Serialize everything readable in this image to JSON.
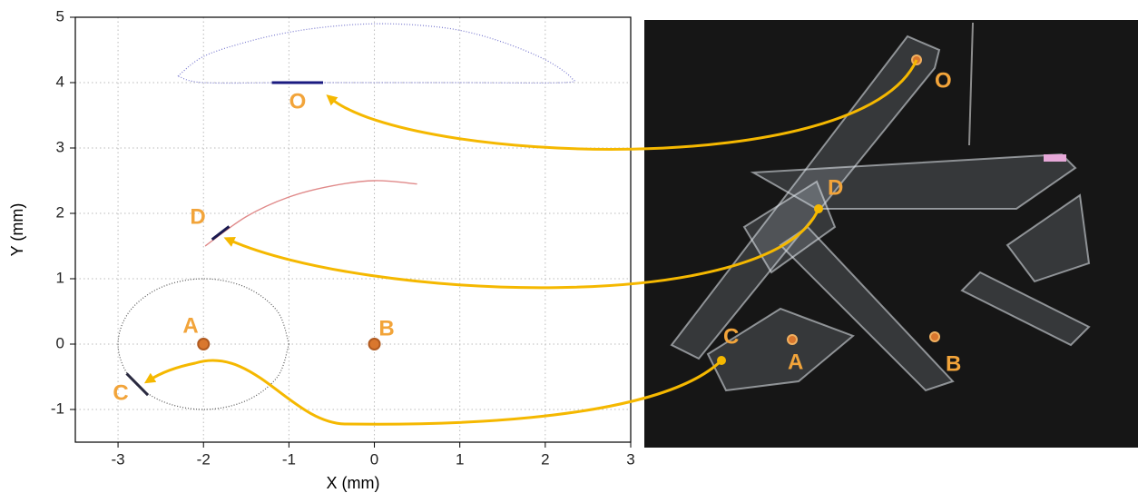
{
  "chart_data": {
    "type": "line",
    "xlabel": "X (mm)",
    "ylabel": "Y (mm)",
    "xlim": [
      -3.5,
      3
    ],
    "ylim": [
      -1.5,
      5
    ],
    "xticks": [
      -3,
      -2,
      -1,
      0,
      1,
      2,
      3
    ],
    "yticks": [
      -1,
      0,
      1,
      2,
      3,
      4,
      5
    ],
    "grid": true,
    "series": [
      {
        "color": "#7a7ad0",
        "line_style": "dotted",
        "x": [
          -2.3,
          -2,
          -1.5,
          -1,
          -0.5,
          0,
          0.5,
          1,
          1.5,
          2,
          2.3,
          2.2,
          1,
          0,
          -1,
          -2,
          -2.3
        ],
        "values": [
          4.1,
          4.4,
          4.62,
          4.77,
          4.86,
          4.9,
          4.88,
          4.8,
          4.62,
          4.35,
          4.08,
          4.0,
          4.0,
          4.0,
          4.0,
          4.0,
          4.1
        ]
      },
      {
        "color": "#1a1a80",
        "line_style": "solid",
        "x": [
          -1.2,
          -0.6
        ],
        "values": [
          4.0,
          4.0
        ]
      },
      {
        "color": "#e08a8a",
        "line_style": "solid",
        "x": [
          -1.98,
          -1.5,
          -1,
          -0.5,
          0,
          0.5
        ],
        "values": [
          1.5,
          1.95,
          2.25,
          2.42,
          2.5,
          2.45
        ]
      },
      {
        "color": "#1a1a50",
        "line_style": "solid",
        "x": [
          -1.9,
          -1.7
        ],
        "values": [
          1.6,
          1.8
        ]
      },
      {
        "color": "#555555",
        "line_style": "dotted",
        "x": [
          -1,
          -1.134,
          -1.5,
          -2,
          -2.5,
          -2.866,
          -3,
          -2.866,
          -2.5,
          -2,
          -1.5,
          -1.134,
          -1
        ],
        "values": [
          0,
          0.5,
          0.866,
          1,
          0.866,
          0.5,
          0,
          -0.5,
          -0.866,
          -1,
          -0.866,
          -0.5,
          0
        ]
      },
      {
        "color": "#2a2a40",
        "line_style": "solid",
        "x": [
          -2.9,
          -2.65
        ],
        "values": [
          -0.45,
          -0.78
        ]
      },
      {
        "type": "scatter",
        "color": "#d9772e",
        "x": [
          -2,
          0
        ],
        "values": [
          0,
          0
        ]
      }
    ],
    "annotations": [
      "O",
      "D",
      "A",
      "B",
      "C"
    ]
  }
}
